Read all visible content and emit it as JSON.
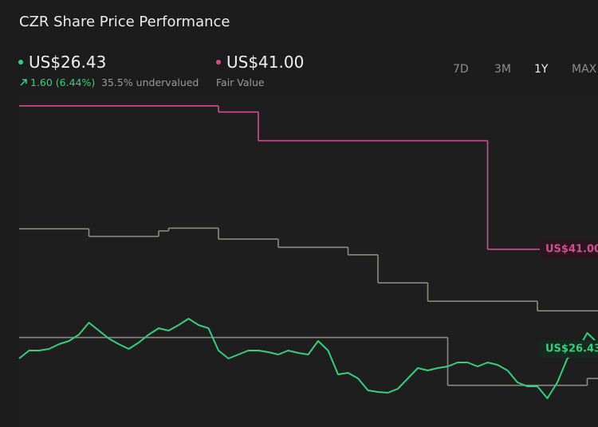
{
  "header": {
    "title": "CZR Share Price Performance",
    "price": "US$26.43",
    "change": "1.60 (6.44%)",
    "valuation": "35.5% undervalued",
    "fair_value": "US$41.00",
    "fair_value_label": "Fair Value",
    "tabs": [
      "7D",
      "3M",
      "1Y",
      "MAX"
    ],
    "active_tab": 2
  },
  "chart_data": {
    "type": "line",
    "ylim": [
      15,
      63.5
    ],
    "series": [
      {
        "name": "Fair Value",
        "color": "#cf4f92",
        "step": true,
        "values": [
          62.0,
          62.0,
          62.0,
          62.0,
          62.0,
          62.0,
          62.0,
          62.0,
          62.0,
          62.0,
          62.0,
          62.0,
          62.0,
          62.0,
          62.0,
          62.0,
          62.0,
          62.0,
          62.0,
          62.0,
          61.1,
          61.1,
          61.1,
          61.1,
          56.9,
          56.9,
          56.9,
          56.9,
          56.9,
          56.9,
          56.9,
          56.9,
          56.9,
          56.9,
          56.9,
          56.9,
          56.9,
          56.9,
          56.9,
          56.9,
          56.9,
          56.9,
          56.9,
          56.9,
          56.9,
          56.9,
          56.9,
          41.0,
          41.0,
          41.0,
          41.0,
          41.0,
          41.0,
          41.0,
          41.0,
          41.0,
          41.0,
          41.0,
          41.0,
          41.0
        ]
      },
      {
        "color": "#8c8b7d",
        "step": true,
        "values": [
          44.0,
          44.0,
          44.0,
          44.0,
          44.0,
          44.0,
          44.0,
          42.9,
          42.9,
          42.9,
          42.9,
          42.9,
          42.9,
          42.9,
          43.7,
          44.1,
          44.1,
          44.1,
          44.1,
          44.1,
          42.5,
          42.5,
          42.5,
          42.5,
          42.5,
          42.5,
          41.3,
          41.3,
          41.3,
          41.3,
          41.3,
          41.3,
          41.3,
          40.2,
          40.2,
          40.2,
          36.1,
          36.1,
          36.1,
          36.1,
          36.1,
          33.4,
          33.4,
          33.4,
          33.4,
          33.4,
          33.4,
          33.4,
          33.4,
          33.4,
          33.4,
          33.4,
          32.0,
          32.0,
          32.0,
          32.0,
          32.0,
          32.0,
          32.0,
          32.0
        ]
      },
      {
        "color": "#8c8b7d",
        "step": true,
        "values": [
          28.1,
          28.1,
          28.1,
          28.1,
          28.1,
          28.1,
          28.1,
          28.1,
          28.1,
          28.1,
          28.1,
          28.1,
          28.1,
          28.1,
          28.1,
          28.1,
          28.1,
          28.1,
          28.1,
          28.1,
          28.1,
          28.1,
          28.1,
          28.1,
          28.1,
          28.1,
          28.1,
          28.1,
          28.1,
          28.1,
          28.1,
          28.1,
          28.1,
          28.1,
          28.1,
          28.1,
          28.1,
          28.1,
          28.1,
          28.1,
          28.1,
          28.1,
          28.1,
          21.1,
          21.1,
          21.1,
          21.1,
          21.1,
          21.1,
          21.1,
          21.1,
          21.1,
          21.1,
          21.1,
          21.1,
          21.1,
          21.1,
          22.1,
          22.1,
          22.1
        ]
      },
      {
        "name": "Share Price",
        "color": "#36cf7e",
        "values": [
          25.03,
          26.19,
          26.19,
          26.43,
          27.13,
          27.59,
          28.52,
          30.27,
          29.11,
          27.94,
          27.13,
          26.43,
          27.36,
          28.52,
          29.46,
          29.11,
          29.92,
          30.86,
          29.92,
          29.46,
          26.19,
          25.03,
          25.61,
          26.19,
          26.19,
          25.96,
          25.61,
          26.19,
          25.84,
          25.61,
          27.59,
          26.19,
          22.7,
          22.93,
          22.11,
          20.36,
          20.13,
          20.01,
          20.6,
          22.11,
          23.63,
          23.28,
          23.63,
          23.86,
          24.44,
          24.44,
          23.86,
          24.44,
          24.09,
          23.28,
          21.53,
          20.95,
          20.95,
          19.2,
          21.53,
          25.03,
          26.19,
          28.76,
          27.36,
          26.43
        ]
      }
    ]
  }
}
